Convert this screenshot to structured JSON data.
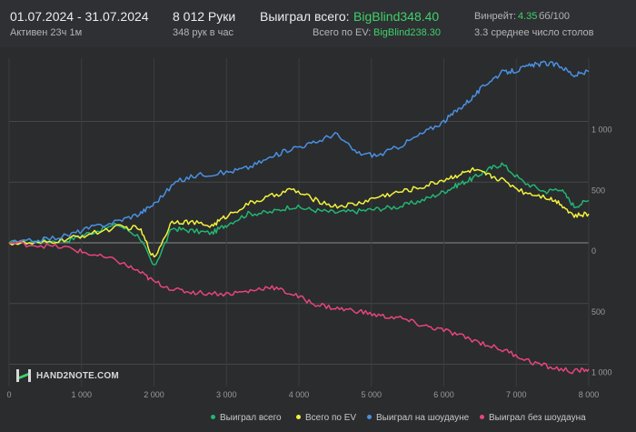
{
  "header": {
    "date_range": "01.07.2024 - 31.07.2024",
    "active": "Активен 23ч 1м",
    "hands": "8 012 Руки",
    "hands_per_hour": "348 рук в час",
    "won_label": "Выиграл всего:",
    "won_value": "BigBlind348.40",
    "ev_label": "Всего по EV:",
    "ev_value": "BigBlind238.30",
    "winrate_label": "Винрейт:",
    "winrate_value": "4.35",
    "winrate_hands": "бб/100",
    "tables": "3.3 среднее число столов"
  },
  "logo": {
    "text": "HAND2NOTE.COM"
  },
  "colors": {
    "background": "#2a2c2e",
    "grid": "#3e4043",
    "green": "#22b573",
    "yellow": "#f2f23c",
    "blue": "#4a90e2",
    "pink": "#e8457a"
  },
  "chart_data": {
    "type": "line",
    "xlim": [
      0,
      8000
    ],
    "ylim": [
      -1100,
      1500
    ],
    "x_ticks": [
      "0",
      "1 000",
      "2 000",
      "3 000",
      "4 000",
      "5 000",
      "6 000",
      "7 000",
      "8 000"
    ],
    "y_ticks": [
      {
        "value": 1000,
        "label": "1 000"
      },
      {
        "value": 500,
        "label": "500"
      },
      {
        "value": 0,
        "label": "0"
      },
      {
        "value": -500,
        "label": "500"
      },
      {
        "value": -1000,
        "label": "1 000"
      }
    ],
    "grid": true,
    "legend_position": "bottom",
    "series": [
      {
        "name": "Выиграл всего",
        "color": "#22b573",
        "x": [
          0,
          400,
          800,
          1100,
          1500,
          1800,
          2000,
          2250,
          2500,
          2800,
          3000,
          3300,
          3600,
          3900,
          4200,
          4500,
          4800,
          5100,
          5400,
          5700,
          6000,
          6200,
          6400,
          6600,
          6800,
          7100,
          7400,
          7600,
          7800,
          8000
        ],
        "y": [
          0,
          10,
          20,
          80,
          150,
          50,
          -200,
          120,
          100,
          80,
          150,
          240,
          250,
          300,
          270,
          250,
          260,
          280,
          300,
          350,
          420,
          480,
          530,
          600,
          650,
          500,
          420,
          450,
          300,
          348
        ]
      },
      {
        "name": "Всего по EV",
        "color": "#f2f23c",
        "x": [
          0,
          400,
          800,
          1100,
          1500,
          1800,
          2000,
          2250,
          2500,
          2800,
          3000,
          3300,
          3600,
          3900,
          4200,
          4500,
          4800,
          5100,
          5400,
          5700,
          6000,
          6200,
          6400,
          6600,
          6800,
          7100,
          7400,
          7600,
          7800,
          8000
        ],
        "y": [
          0,
          -10,
          30,
          70,
          130,
          120,
          -130,
          180,
          170,
          140,
          220,
          320,
          380,
          440,
          360,
          300,
          320,
          380,
          420,
          460,
          520,
          560,
          600,
          560,
          520,
          420,
          380,
          330,
          220,
          238
        ]
      },
      {
        "name": "Выиграл на шоудауне",
        "color": "#4a90e2",
        "x": [
          0,
          400,
          800,
          1100,
          1500,
          1800,
          2000,
          2300,
          2600,
          3000,
          3300,
          3600,
          3900,
          4200,
          4500,
          4800,
          5100,
          5400,
          5700,
          6000,
          6200,
          6400,
          6600,
          6800,
          7000,
          7200,
          7400,
          7600,
          7800,
          8000
        ],
        "y": [
          0,
          20,
          60,
          120,
          180,
          240,
          320,
          500,
          560,
          580,
          620,
          700,
          780,
          820,
          900,
          740,
          720,
          800,
          900,
          1000,
          1100,
          1200,
          1320,
          1400,
          1420,
          1460,
          1480,
          1460,
          1380,
          1410
        ]
      },
      {
        "name": "Выиграл без шоудауна",
        "color": "#e8457a",
        "x": [
          0,
          400,
          800,
          1100,
          1500,
          1800,
          2000,
          2300,
          2600,
          3000,
          3300,
          3600,
          3900,
          4200,
          4500,
          4800,
          5100,
          5400,
          5700,
          6000,
          6300,
          6600,
          6900,
          7200,
          7500,
          7800,
          8000
        ],
        "y": [
          0,
          -20,
          -40,
          -90,
          -150,
          -240,
          -320,
          -390,
          -410,
          -420,
          -400,
          -360,
          -420,
          -500,
          -540,
          -560,
          -600,
          -620,
          -680,
          -720,
          -780,
          -840,
          -900,
          -980,
          -1030,
          -1060,
          -1040
        ]
      }
    ]
  }
}
